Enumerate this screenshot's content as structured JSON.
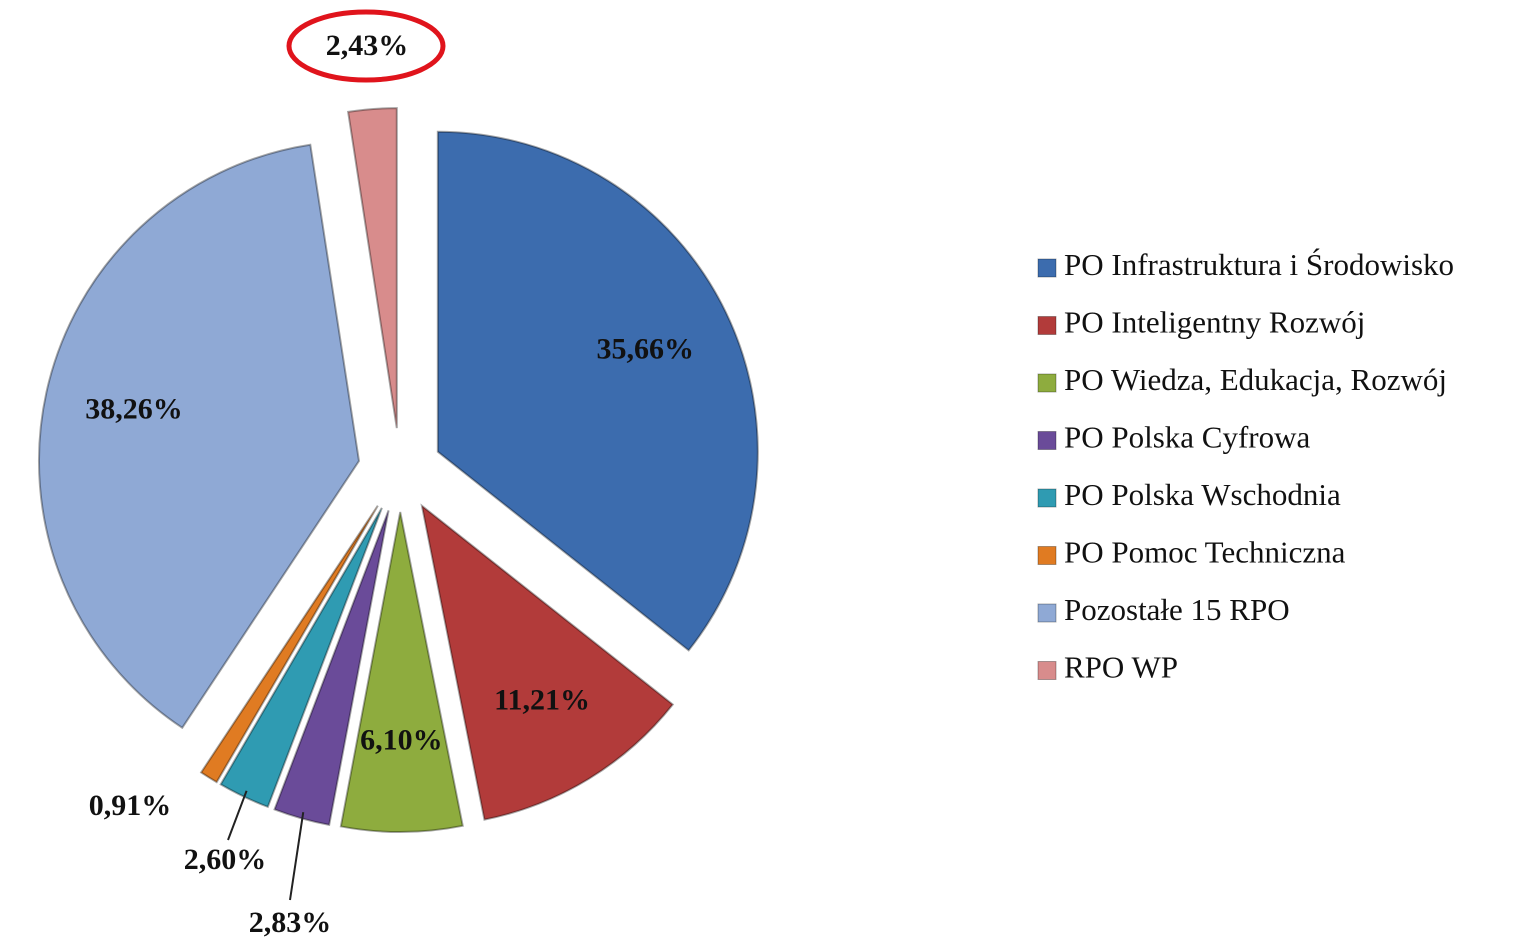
{
  "chart_data": {
    "type": "pie",
    "categories": [
      "PO Infrastruktura i Środowisko",
      "PO Inteligentny Rozwój",
      "PO Wiedza, Edukacja, Rozwój",
      "PO Polska Cyfrowa",
      "PO Polska Wschodnia",
      "PO Pomoc Techniczna",
      "Pozostałe 15 RPO",
      "RPO WP"
    ],
    "values": [
      35.66,
      11.21,
      6.1,
      2.83,
      2.6,
      0.91,
      38.26,
      2.43
    ],
    "value_labels": [
      "35,66%",
      "11,21%",
      "6,10%",
      "2,83%",
      "2,60%",
      "0,91%",
      "38,26%",
      "2,43%"
    ],
    "colors": [
      "#3c6cae",
      "#b23b3a",
      "#8eac3e",
      "#6a4b99",
      "#2f9bb2",
      "#e07b22",
      "#8fa9d5",
      "#d88c8c"
    ],
    "legend": "right"
  }
}
